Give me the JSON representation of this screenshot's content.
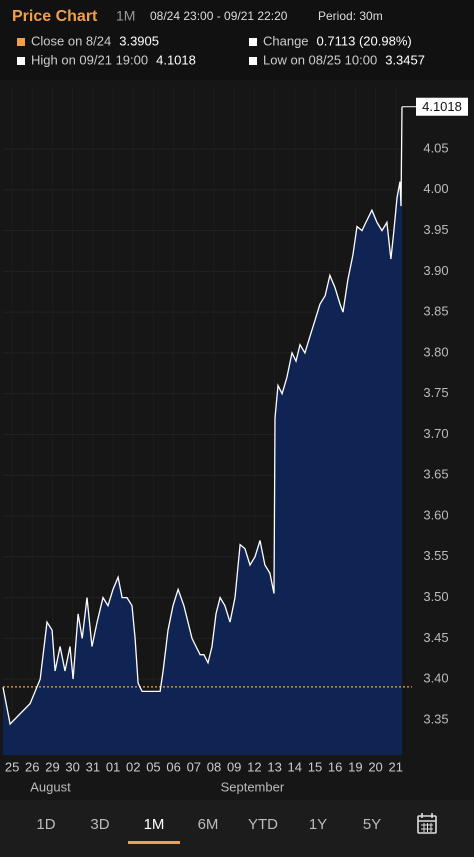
{
  "chart_data": {
    "type": "area",
    "title": "Price Chart",
    "range": "1M",
    "date_range": "08/24 23:00 - 09/21 22:20",
    "period": "Period: 30m",
    "stats": [
      {
        "label": "Close on 8/24",
        "value": 3.3905,
        "color": "#f0a04b"
      },
      {
        "label": "Change",
        "value": "0.7113 (20.98%)",
        "color": "#ffffff"
      },
      {
        "label": "High on 09/21 19:00",
        "value": "4.1018",
        "color": "#ffffff"
      },
      {
        "label": "Low on 08/25 10:00",
        "value": "3.3457",
        "color": "#ffffff"
      }
    ],
    "x": [
      -0.45,
      -0.1,
      0.89,
      1.39,
      1.73,
      1.98,
      2.13,
      2.38,
      2.62,
      2.87,
      3.02,
      3.27,
      3.47,
      3.71,
      3.96,
      4.21,
      4.5,
      4.75,
      5.0,
      5.25,
      5.45,
      5.69,
      5.94,
      6.09,
      6.24,
      6.44,
      7.33,
      7.48,
      7.72,
      7.97,
      8.22,
      8.51,
      8.71,
      8.91,
      9.11,
      9.31,
      9.5,
      9.7,
      9.9,
      10.1,
      10.3,
      10.54,
      10.79,
      11.04,
      11.29,
      11.53,
      11.78,
      12.03,
      12.28,
      12.52,
      12.77,
      12.97,
      13.02,
      13.17,
      13.37,
      13.61,
      13.86,
      14.06,
      14.26,
      14.5,
      14.75,
      15.0,
      15.25,
      15.5,
      15.74,
      15.99,
      16.24,
      16.39,
      16.63,
      16.88,
      17.08,
      17.33,
      17.52,
      17.82,
      18.07,
      18.32,
      18.56,
      18.76,
      18.91,
      19.06,
      19.21,
      19.26,
      19.31
    ],
    "values": [
      3.39,
      3.345,
      3.37,
      3.4,
      3.47,
      3.46,
      3.41,
      3.44,
      3.41,
      3.44,
      3.4,
      3.48,
      3.45,
      3.5,
      3.44,
      3.47,
      3.5,
      3.49,
      3.51,
      3.525,
      3.5,
      3.5,
      3.49,
      3.45,
      3.395,
      3.385,
      3.385,
      3.41,
      3.46,
      3.49,
      3.51,
      3.49,
      3.47,
      3.45,
      3.44,
      3.43,
      3.43,
      3.42,
      3.44,
      3.48,
      3.5,
      3.49,
      3.47,
      3.5,
      3.565,
      3.56,
      3.54,
      3.55,
      3.57,
      3.54,
      3.53,
      3.505,
      3.72,
      3.76,
      3.75,
      3.77,
      3.8,
      3.79,
      3.81,
      3.8,
      3.82,
      3.84,
      3.86,
      3.87,
      3.895,
      3.88,
      3.86,
      3.85,
      3.89,
      3.92,
      3.955,
      3.95,
      3.96,
      3.975,
      3.96,
      3.95,
      3.96,
      3.915,
      3.95,
      3.99,
      4.01,
      3.98,
      4.1018
    ],
    "color": "#ffffff",
    "fill_color": "#0f2452",
    "reference_color": "#f0a04b",
    "xlim": [
      -0.45,
      19.31
    ],
    "ylim": [
      3.307,
      4.126
    ],
    "yticks": [
      3.35,
      {
        "value": 3.4,
        "label": "3.40"
      },
      3.45,
      {
        "value": 3.5,
        "label": "3.50"
      },
      3.55,
      {
        "value": 3.6,
        "label": "3.60"
      },
      3.65,
      {
        "value": 3.7,
        "label": "3.70"
      },
      3.75,
      {
        "value": 3.8,
        "label": "3.80"
      },
      3.85,
      {
        "value": 3.9,
        "label": "3.90"
      },
      3.95,
      {
        "value": 4.0,
        "label": "4.00"
      },
      4.05
    ],
    "xticks": [
      {
        "value": 0,
        "label": "25"
      },
      {
        "value": 1,
        "label": "26"
      },
      {
        "value": 2,
        "label": "29"
      },
      {
        "value": 3,
        "label": "30"
      },
      {
        "value": 4,
        "label": "31"
      },
      {
        "value": 5,
        "label": "01"
      },
      {
        "value": 6,
        "label": "02"
      },
      {
        "value": 7,
        "label": "05"
      },
      {
        "value": 8,
        "label": "06"
      },
      {
        "value": 9,
        "label": "07"
      },
      {
        "value": 10,
        "label": "08"
      },
      {
        "value": 11,
        "label": "09"
      },
      {
        "value": 12,
        "label": "12"
      },
      {
        "value": 13,
        "label": "13"
      },
      {
        "value": 14,
        "label": "14"
      },
      {
        "value": 15,
        "label": "15"
      },
      {
        "value": 16,
        "label": "16"
      },
      {
        "value": 17,
        "label": "19"
      },
      {
        "value": 18,
        "label": "20"
      },
      {
        "value": 19,
        "label": "21"
      }
    ],
    "month_labels": [
      {
        "value": 1.9,
        "label": "August"
      },
      {
        "value": 11.9,
        "label": "September"
      }
    ],
    "grid": true,
    "tabs": [
      "1D",
      "3D",
      "1M",
      "6M",
      "YTD",
      "1Y",
      "5Y"
    ],
    "active_tab": 2
  }
}
